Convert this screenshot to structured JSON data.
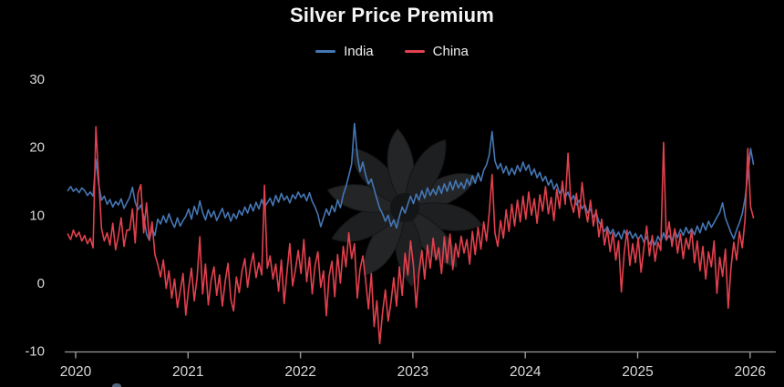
{
  "title": "Silver Price Premium",
  "colors": {
    "background": "#000000",
    "axis": "#9a9a9a",
    "tick_label": "#d9d9d9",
    "title_text": "#f5f5f5",
    "watermark": "#232527"
  },
  "chart_data": {
    "type": "line",
    "title": "Silver Price Premium",
    "xlabel": "",
    "ylabel": "",
    "grid": false,
    "legend_position": "top-center",
    "x_axis": {
      "tick_years": [
        2020,
        2021,
        2022,
        2023,
        2024,
        2025,
        2026
      ],
      "range": [
        2019.9,
        2026.1
      ]
    },
    "y_axis": {
      "ticks": [
        30,
        20,
        10,
        0,
        -10
      ],
      "range": [
        -10,
        30
      ]
    },
    "x_start": 2019.93,
    "x_step": 0.025,
    "series": [
      {
        "name": "India",
        "color": "#4577b5",
        "values": [
          13.6,
          14.2,
          13.5,
          13.9,
          13.3,
          14.0,
          13.6,
          12.9,
          13.4,
          12.8,
          18.2,
          14.5,
          12.2,
          12.8,
          11.6,
          12.3,
          11.2,
          12.0,
          11.5,
          12.4,
          11.0,
          11.8,
          12.6,
          14.1,
          11.9,
          10.8,
          11.5,
          9.8,
          7.2,
          6.3,
          8.0,
          7.0,
          9.4,
          8.7,
          9.9,
          8.9,
          10.2,
          9.0,
          8.2,
          9.6,
          8.4,
          9.2,
          9.8,
          10.9,
          9.4,
          11.3,
          10.1,
          12.1,
          10.4,
          9.3,
          10.8,
          9.7,
          10.6,
          9.2,
          10.1,
          11.0,
          9.6,
          10.4,
          9.1,
          10.2,
          9.5,
          10.7,
          10.0,
          11.2,
          10.3,
          11.6,
          10.6,
          11.9,
          10.9,
          12.3,
          11.2,
          11.8,
          12.5,
          11.4,
          12.9,
          11.9,
          13.2,
          12.2,
          12.8,
          11.8,
          13.0,
          12.4,
          13.4,
          12.6,
          13.1,
          12.1,
          13.3,
          12.0,
          11.2,
          10.1,
          8.3,
          9.6,
          10.9,
          10.0,
          11.4,
          10.5,
          12.2,
          11.1,
          13.0,
          14.2,
          15.8,
          17.5,
          23.5,
          18.9,
          16.4,
          17.8,
          15.9,
          14.6,
          15.3,
          13.8,
          12.4,
          11.0,
          10.2,
          9.1,
          10.0,
          8.4,
          9.3,
          8.1,
          9.8,
          11.2,
          10.3,
          11.6,
          12.8,
          11.7,
          13.1,
          12.2,
          13.6,
          12.5,
          14.0,
          12.9,
          13.8,
          13.0,
          14.3,
          13.2,
          14.6,
          13.5,
          14.9,
          13.7,
          15.1,
          14.0,
          14.8,
          13.9,
          15.3,
          14.4,
          15.8,
          14.7,
          16.2,
          15.0,
          16.6,
          17.4,
          18.9,
          22.3,
          18.0,
          16.8,
          17.6,
          16.2,
          17.2,
          15.9,
          16.9,
          16.0,
          17.3,
          16.4,
          17.8,
          16.6,
          17.4,
          15.9,
          16.8,
          15.5,
          16.3,
          15.0,
          15.7,
          14.4,
          15.2,
          13.8,
          14.6,
          13.2,
          13.9,
          12.6,
          13.4,
          12.1,
          12.9,
          11.5,
          12.2,
          10.9,
          11.6,
          10.3,
          10.9,
          9.7,
          10.4,
          9.0,
          8.4,
          7.6,
          8.3,
          7.2,
          7.9,
          6.8,
          7.5,
          6.5,
          7.8,
          6.9,
          7.6,
          6.6,
          7.3,
          6.4,
          7.1,
          6.0,
          6.8,
          5.7,
          6.5,
          5.6,
          6.9,
          6.1,
          7.4,
          6.3,
          7.0,
          6.2,
          7.7,
          6.7,
          7.9,
          7.0,
          8.2,
          7.3,
          8.0,
          7.1,
          8.4,
          7.4,
          8.8,
          7.8,
          9.1,
          8.2,
          8.9,
          9.7,
          10.4,
          11.8,
          9.6,
          8.5,
          7.4,
          6.5,
          7.8,
          8.9,
          10.2,
          12.5,
          15.8,
          19.8,
          17.5
        ]
      },
      {
        "name": "China",
        "color": "#e2414e",
        "values": [
          7.2,
          6.4,
          7.8,
          6.8,
          7.5,
          6.2,
          7.0,
          5.8,
          6.6,
          5.2,
          23.0,
          15.2,
          8.0,
          6.2,
          7.4,
          5.6,
          8.8,
          4.9,
          7.0,
          9.6,
          5.4,
          7.8,
          7.8,
          10.9,
          5.9,
          13.2,
          14.5,
          7.4,
          11.8,
          6.3,
          9.0,
          4.2,
          2.8,
          0.9,
          3.4,
          -0.8,
          1.8,
          -2.2,
          0.6,
          -3.6,
          -1.2,
          1.4,
          -4.7,
          -0.8,
          2.2,
          -2.6,
          0.8,
          6.8,
          -1.6,
          2.8,
          -3.2,
          0.4,
          2.4,
          -1.8,
          1.2,
          -3.4,
          0.2,
          2.9,
          -2.4,
          -4.1,
          0.9,
          -1.4,
          1.8,
          3.6,
          -0.6,
          2.4,
          4.4,
          0.8,
          3.0,
          1.2,
          14.4,
          2.2,
          4.0,
          0.6,
          2.8,
          -1.2,
          3.4,
          -3.0,
          1.6,
          5.8,
          -0.4,
          2.0,
          4.8,
          1.4,
          6.4,
          0.2,
          3.8,
          -1.6,
          2.6,
          4.6,
          -0.6,
          1.8,
          -4.8,
          1.0,
          3.2,
          -2.0,
          4.2,
          0.0,
          5.4,
          2.4,
          7.4,
          3.6,
          5.8,
          -2.2,
          2.0,
          4.0,
          0.4,
          -3.8,
          1.4,
          -6.4,
          -2.6,
          -8.9,
          -4.4,
          -1.0,
          -5.6,
          -2.8,
          0.8,
          -3.4,
          2.4,
          -1.8,
          4.4,
          1.2,
          6.2,
          2.6,
          -3.6,
          1.8,
          4.8,
          0.6,
          5.6,
          2.2,
          6.6,
          3.4,
          5.2,
          1.4,
          6.8,
          3.0,
          7.2,
          2.0,
          5.8,
          3.8,
          6.9,
          4.4,
          6.4,
          2.8,
          7.6,
          4.2,
          8.2,
          5.0,
          9.0,
          6.2,
          10.4,
          16.0,
          7.4,
          5.4,
          9.2,
          6.6,
          10.8,
          7.6,
          11.6,
          8.4,
          12.2,
          9.0,
          12.8,
          9.4,
          13.4,
          10.0,
          12.4,
          8.8,
          13.0,
          10.6,
          14.2,
          10.2,
          12.6,
          9.2,
          13.8,
          11.0,
          15.0,
          11.6,
          19.1,
          12.0,
          10.4,
          13.2,
          9.6,
          14.8,
          11.2,
          9.0,
          12.2,
          8.4,
          10.8,
          6.8,
          9.4,
          5.6,
          8.0,
          4.6,
          7.4,
          3.4,
          6.2,
          -1.3,
          4.4,
          7.8,
          2.6,
          5.8,
          3.0,
          6.6,
          1.6,
          5.2,
          8.4,
          4.0,
          7.0,
          3.2,
          6.0,
          4.8,
          20.7,
          6.4,
          9.0,
          5.4,
          8.0,
          4.4,
          7.2,
          3.6,
          6.6,
          5.0,
          7.8,
          3.0,
          6.2,
          1.8,
          5.4,
          0.6,
          4.6,
          2.4,
          6.2,
          -1.5,
          3.8,
          1.0,
          5.0,
          -3.7,
          2.2,
          6.0,
          3.4,
          7.6,
          5.2,
          9.4,
          19.8,
          11.2,
          9.6
        ]
      }
    ]
  }
}
